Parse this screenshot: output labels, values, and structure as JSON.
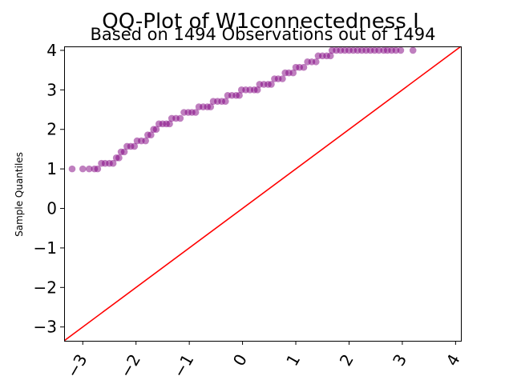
{
  "chart_data": {
    "type": "scatter",
    "title": "QQ-Plot of W1connectedness I",
    "subtitle": "Based on 1494 Observations out of 1494",
    "xlabel": "",
    "ylabel": "Sample Quantiles",
    "xlim": [
      -3.35,
      4.1
    ],
    "ylim": [
      -3.35,
      4.1
    ],
    "x_ticks": [
      -3,
      -2,
      -1,
      0,
      1,
      2,
      3,
      4
    ],
    "y_ticks": [
      -3,
      -2,
      -1,
      0,
      1,
      2,
      3,
      4
    ],
    "x_tick_labels": [
      "−3",
      "−2",
      "−1",
      "0",
      "1",
      "2",
      "3",
      "4"
    ],
    "y_tick_labels": [
      "−3",
      "−2",
      "−1",
      "0",
      "1",
      "2",
      "3",
      "4"
    ],
    "grid": false,
    "point_color": "#800080",
    "line_color": "#ff0000",
    "reference_line": {
      "slope": 1,
      "intercept": 0
    },
    "points": [
      {
        "x": -3.2,
        "y": 1.0
      },
      {
        "x": -3.0,
        "y": 1.0
      },
      {
        "x": -2.88,
        "y": 1.0
      },
      {
        "x": -2.78,
        "y": 1.0
      },
      {
        "x": -2.72,
        "y": 1.0
      },
      {
        "x": -2.65,
        "y": 1.14
      },
      {
        "x": -2.58,
        "y": 1.14
      },
      {
        "x": -2.5,
        "y": 1.14
      },
      {
        "x": -2.43,
        "y": 1.14
      },
      {
        "x": -2.37,
        "y": 1.28
      },
      {
        "x": -2.32,
        "y": 1.28
      },
      {
        "x": -2.28,
        "y": 1.43
      },
      {
        "x": -2.22,
        "y": 1.43
      },
      {
        "x": -2.17,
        "y": 1.57
      },
      {
        "x": -2.1,
        "y": 1.57
      },
      {
        "x": -2.03,
        "y": 1.57
      },
      {
        "x": -1.98,
        "y": 1.71
      },
      {
        "x": -1.9,
        "y": 1.71
      },
      {
        "x": -1.82,
        "y": 1.71
      },
      {
        "x": -1.78,
        "y": 1.86
      },
      {
        "x": -1.72,
        "y": 1.86
      },
      {
        "x": -1.67,
        "y": 2.0
      },
      {
        "x": -1.62,
        "y": 2.0
      },
      {
        "x": -1.57,
        "y": 2.14
      },
      {
        "x": -1.5,
        "y": 2.14
      },
      {
        "x": -1.43,
        "y": 2.14
      },
      {
        "x": -1.37,
        "y": 2.14
      },
      {
        "x": -1.33,
        "y": 2.28
      },
      {
        "x": -1.25,
        "y": 2.28
      },
      {
        "x": -1.17,
        "y": 2.28
      },
      {
        "x": -1.1,
        "y": 2.43
      },
      {
        "x": -1.02,
        "y": 2.43
      },
      {
        "x": -0.95,
        "y": 2.43
      },
      {
        "x": -0.88,
        "y": 2.43
      },
      {
        "x": -0.82,
        "y": 2.57
      },
      {
        "x": -0.74,
        "y": 2.57
      },
      {
        "x": -0.66,
        "y": 2.57
      },
      {
        "x": -0.6,
        "y": 2.57
      },
      {
        "x": -0.55,
        "y": 2.71
      },
      {
        "x": -0.47,
        "y": 2.71
      },
      {
        "x": -0.39,
        "y": 2.71
      },
      {
        "x": -0.32,
        "y": 2.71
      },
      {
        "x": -0.28,
        "y": 2.86
      },
      {
        "x": -0.2,
        "y": 2.86
      },
      {
        "x": -0.12,
        "y": 2.86
      },
      {
        "x": -0.06,
        "y": 2.86
      },
      {
        "x": -0.02,
        "y": 3.0
      },
      {
        "x": 0.06,
        "y": 3.0
      },
      {
        "x": 0.14,
        "y": 3.0
      },
      {
        "x": 0.22,
        "y": 3.0
      },
      {
        "x": 0.28,
        "y": 3.0
      },
      {
        "x": 0.32,
        "y": 3.14
      },
      {
        "x": 0.4,
        "y": 3.14
      },
      {
        "x": 0.48,
        "y": 3.14
      },
      {
        "x": 0.54,
        "y": 3.14
      },
      {
        "x": 0.6,
        "y": 3.28
      },
      {
        "x": 0.67,
        "y": 3.28
      },
      {
        "x": 0.75,
        "y": 3.28
      },
      {
        "x": 0.8,
        "y": 3.43
      },
      {
        "x": 0.87,
        "y": 3.43
      },
      {
        "x": 0.95,
        "y": 3.43
      },
      {
        "x": 1.0,
        "y": 3.57
      },
      {
        "x": 1.07,
        "y": 3.57
      },
      {
        "x": 1.15,
        "y": 3.57
      },
      {
        "x": 1.22,
        "y": 3.71
      },
      {
        "x": 1.3,
        "y": 3.71
      },
      {
        "x": 1.38,
        "y": 3.71
      },
      {
        "x": 1.42,
        "y": 3.86
      },
      {
        "x": 1.5,
        "y": 3.86
      },
      {
        "x": 1.58,
        "y": 3.86
      },
      {
        "x": 1.65,
        "y": 3.86
      },
      {
        "x": 1.68,
        "y": 4.0
      },
      {
        "x": 1.76,
        "y": 4.0
      },
      {
        "x": 1.84,
        "y": 4.0
      },
      {
        "x": 1.92,
        "y": 4.0
      },
      {
        "x": 2.0,
        "y": 4.0
      },
      {
        "x": 2.08,
        "y": 4.0
      },
      {
        "x": 2.16,
        "y": 4.0
      },
      {
        "x": 2.24,
        "y": 4.0
      },
      {
        "x": 2.32,
        "y": 4.0
      },
      {
        "x": 2.4,
        "y": 4.0
      },
      {
        "x": 2.48,
        "y": 4.0
      },
      {
        "x": 2.56,
        "y": 4.0
      },
      {
        "x": 2.65,
        "y": 4.0
      },
      {
        "x": 2.72,
        "y": 4.0
      },
      {
        "x": 2.8,
        "y": 4.0
      },
      {
        "x": 2.88,
        "y": 4.0
      },
      {
        "x": 2.97,
        "y": 4.0
      },
      {
        "x": 3.2,
        "y": 4.0
      }
    ]
  }
}
